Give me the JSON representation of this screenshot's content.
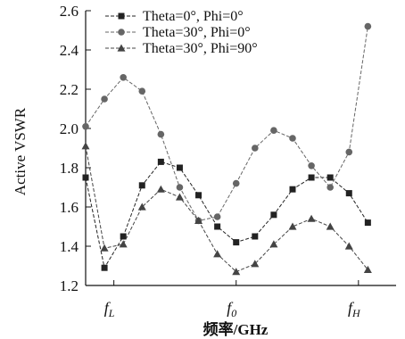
{
  "chart_data": {
    "type": "line",
    "xlabel": "频率/GHz",
    "ylabel": "Active VSWR",
    "ylim": [
      1.2,
      2.6
    ],
    "yticks": [
      "1.2",
      "1.4",
      "1.6",
      "1.8",
      "2.0",
      "2.2",
      "2.4",
      "2.6"
    ],
    "xticks": [
      {
        "main": "f",
        "sub": "L"
      },
      {
        "main": "f",
        "sub": "0"
      },
      {
        "main": "f",
        "sub": "H"
      }
    ],
    "legend_position": "top-left",
    "grid": false,
    "x": [
      0,
      1,
      2,
      3,
      4,
      5,
      6,
      7,
      8,
      9,
      10,
      11,
      12,
      13,
      14,
      15
    ],
    "series": [
      {
        "name": "Theta=0°, Phi=0°",
        "marker": "square",
        "color": "#222222",
        "values": [
          1.75,
          1.29,
          1.45,
          1.71,
          1.83,
          1.8,
          1.66,
          1.5,
          1.42,
          1.45,
          1.56,
          1.69,
          1.75,
          1.75,
          1.67,
          1.52
        ]
      },
      {
        "name": "Theta=30°, Phi=0°",
        "marker": "circle",
        "color": "#666666",
        "values": [
          2.01,
          2.15,
          2.26,
          2.19,
          1.97,
          1.7,
          1.53,
          1.55,
          1.72,
          1.9,
          1.99,
          1.95,
          1.81,
          1.7,
          1.88,
          2.52
        ]
      },
      {
        "name": "Theta=30°, Phi=90°",
        "marker": "triangle",
        "color": "#444444",
        "values": [
          1.91,
          1.39,
          1.41,
          1.6,
          1.69,
          1.65,
          1.53,
          1.36,
          1.27,
          1.31,
          1.41,
          1.5,
          1.54,
          1.5,
          1.4,
          1.28
        ]
      }
    ]
  }
}
